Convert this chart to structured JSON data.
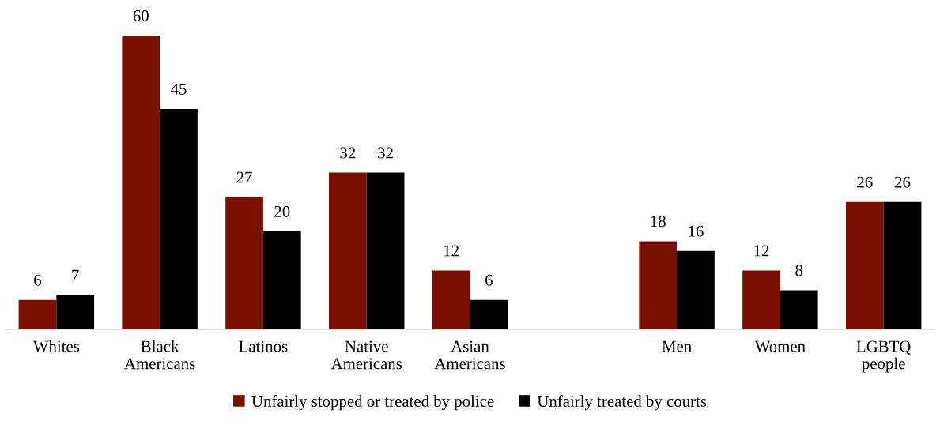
{
  "chart_data": {
    "type": "bar",
    "categories": [
      "Whites",
      "Black\nAmericans",
      "Latinos",
      "Native\nAmericans",
      "Asian\nAmericans",
      null,
      "Men",
      "Women",
      "LGBTQ\npeople"
    ],
    "series": [
      {
        "name": "Unfairly stopped or treated by police",
        "color": "#7b0f00",
        "values": [
          6,
          60,
          27,
          32,
          12,
          null,
          18,
          12,
          26
        ]
      },
      {
        "name": "Unfairly treated by courts",
        "color": "#000000",
        "values": [
          7,
          45,
          20,
          32,
          6,
          null,
          16,
          8,
          26
        ]
      }
    ],
    "data_labels": true,
    "legend": "bottom",
    "grid": false
  }
}
